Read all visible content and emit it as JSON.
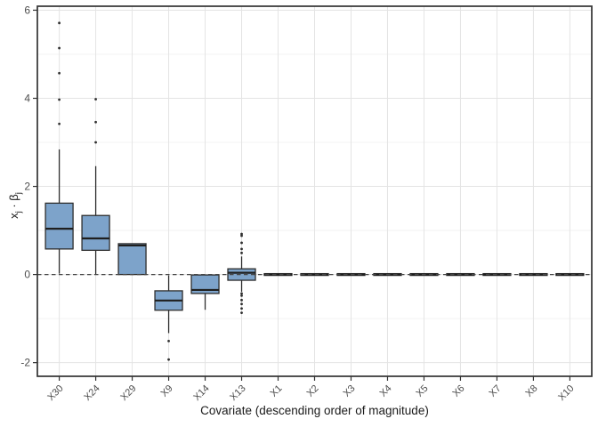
{
  "chart_data": {
    "type": "boxplot",
    "title": "",
    "xlabel": "Covariate (descending order of magnitude)",
    "ylabel": "x_j · β_j",
    "ylabel_parts": {
      "var": "x",
      "var_sub": "j",
      "cdot": " · ",
      "beta": "β",
      "beta_sub": "j"
    },
    "categories": [
      "X30",
      "X24",
      "X29",
      "X9",
      "X14",
      "X13",
      "X1",
      "X2",
      "X3",
      "X4",
      "X5",
      "X6",
      "X7",
      "X8",
      "X10"
    ],
    "boxes": [
      {
        "category": "X30",
        "whisker_low": 0.02,
        "q1": 0.58,
        "median": 1.04,
        "q3": 1.62,
        "whisker_high": 2.84,
        "outliers": [
          3.42,
          3.97,
          4.57,
          5.14,
          5.71
        ]
      },
      {
        "category": "X24",
        "whisker_low": 0.0,
        "q1": 0.55,
        "median": 0.82,
        "q3": 1.34,
        "whisker_high": 2.46,
        "outliers": [
          3.0,
          3.46,
          3.98
        ]
      },
      {
        "category": "X29",
        "whisker_low": 0.0,
        "q1": 0.0,
        "median": 0.66,
        "q3": 0.7,
        "whisker_high": 0.7,
        "outliers": []
      },
      {
        "category": "X9",
        "whisker_low": -1.33,
        "q1": -0.81,
        "median": -0.59,
        "q3": -0.37,
        "whisker_high": -0.02,
        "outliers": [
          -1.51,
          -1.93
        ]
      },
      {
        "category": "X14",
        "whisker_low": -0.8,
        "q1": -0.43,
        "median": -0.35,
        "q3": -0.01,
        "whisker_high": 0.0,
        "outliers": []
      },
      {
        "category": "X13",
        "whisker_low": -0.39,
        "q1": -0.13,
        "median": 0.04,
        "q3": 0.13,
        "whisker_high": 0.41,
        "outliers": [
          0.92,
          0.88,
          0.72,
          0.58,
          0.49,
          -0.43,
          -0.48,
          -0.58,
          -0.67,
          -0.77,
          -0.87
        ]
      },
      {
        "category": "X1",
        "whisker_low": 0.0,
        "q1": -0.02,
        "median": 0.0,
        "q3": 0.02,
        "whisker_high": 0.0,
        "outliers": []
      },
      {
        "category": "X2",
        "whisker_low": 0.0,
        "q1": -0.02,
        "median": 0.0,
        "q3": 0.02,
        "whisker_high": 0.0,
        "outliers": []
      },
      {
        "category": "X3",
        "whisker_low": 0.0,
        "q1": -0.02,
        "median": 0.0,
        "q3": 0.02,
        "whisker_high": 0.0,
        "outliers": []
      },
      {
        "category": "X4",
        "whisker_low": 0.0,
        "q1": -0.02,
        "median": 0.0,
        "q3": 0.02,
        "whisker_high": 0.0,
        "outliers": []
      },
      {
        "category": "X5",
        "whisker_low": 0.0,
        "q1": -0.02,
        "median": 0.0,
        "q3": 0.02,
        "whisker_high": 0.0,
        "outliers": []
      },
      {
        "category": "X6",
        "whisker_low": 0.0,
        "q1": -0.02,
        "median": 0.0,
        "q3": 0.02,
        "whisker_high": 0.0,
        "outliers": []
      },
      {
        "category": "X7",
        "whisker_low": 0.0,
        "q1": -0.02,
        "median": 0.0,
        "q3": 0.02,
        "whisker_high": 0.0,
        "outliers": []
      },
      {
        "category": "X8",
        "whisker_low": 0.0,
        "q1": -0.02,
        "median": 0.0,
        "q3": 0.02,
        "whisker_high": 0.0,
        "outliers": []
      },
      {
        "category": "X10",
        "whisker_low": 0.0,
        "q1": -0.02,
        "median": 0.0,
        "q3": 0.02,
        "whisker_high": 0.0,
        "outliers": []
      }
    ],
    "y_ticks": [
      -2,
      0,
      2,
      4,
      6
    ],
    "y_tick_labels": [
      "-2",
      "0",
      "2",
      "4",
      "6"
    ],
    "y_minor_gridlines": [
      -1,
      1,
      3,
      5
    ],
    "ylim": [
      -2.31,
      6.09
    ],
    "reference_line": {
      "y": 0,
      "style": "dashed"
    },
    "grid": true,
    "legend_position": "none",
    "colors": {
      "box_fill": "#7da3ca",
      "box_stroke": "#2e2e2e",
      "median_stroke": "#1f1f1f",
      "grid_major": "#e4e4e4",
      "grid_minor": "#efefef",
      "panel_border": "#333333",
      "axis_text": "#4d4d4d",
      "title_text": "#1a1a1a",
      "reference_line": "#474747",
      "outlier": "#2f2f2f",
      "background": "#ffffff"
    }
  }
}
